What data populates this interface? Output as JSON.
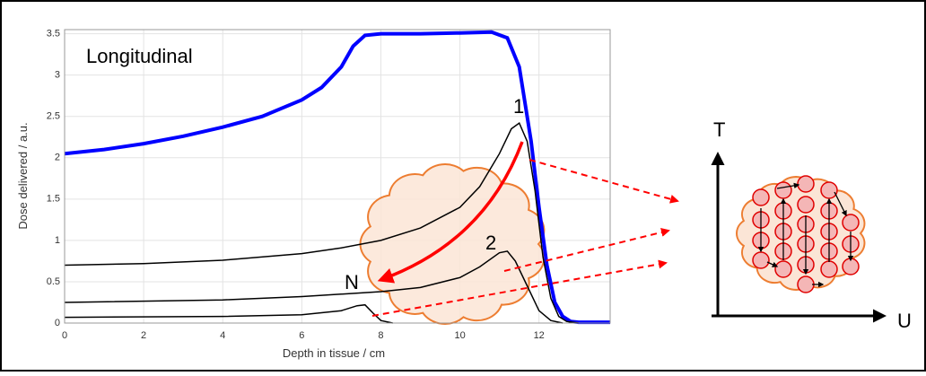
{
  "chart_data": {
    "type": "line",
    "title": "Longitudinal",
    "x_label": "Depth in tissue / cm",
    "y_label": "Dose delivered / a.u.",
    "xlim": [
      0,
      13.8
    ],
    "ylim": [
      0,
      3.55
    ],
    "xticks": [
      0,
      2,
      4,
      6,
      8,
      10,
      12
    ],
    "yticks": [
      0,
      0.5,
      1,
      1.5,
      2,
      2.5,
      3,
      3.5
    ],
    "grid": true,
    "series": [
      {
        "color": "#0000ff",
        "x": [
          0,
          1,
          2,
          3,
          4,
          5,
          6,
          6.5,
          7,
          7.3,
          7.6,
          8,
          9,
          10,
          10.8,
          11.2,
          11.5,
          11.8,
          12,
          12.2,
          12.4,
          12.6,
          12.8,
          13,
          13.8
        ],
        "values": [
          2.05,
          2.1,
          2.17,
          2.26,
          2.37,
          2.5,
          2.7,
          2.85,
          3.1,
          3.35,
          3.48,
          3.5,
          3.5,
          3.51,
          3.52,
          3.45,
          3.1,
          2.2,
          1.4,
          0.7,
          0.25,
          0.08,
          0.02,
          0.01,
          0.01
        ]
      },
      {
        "color": "#000000",
        "x": [
          0,
          2,
          4,
          6,
          7,
          8,
          9,
          10,
          10.5,
          11,
          11.3,
          11.5,
          11.7,
          11.9,
          12.1,
          12.3,
          12.5,
          12.7,
          13
        ],
        "values": [
          0.7,
          0.72,
          0.76,
          0.84,
          0.91,
          1.0,
          1.15,
          1.4,
          1.65,
          2.05,
          2.35,
          2.42,
          2.2,
          1.6,
          0.8,
          0.3,
          0.08,
          0.02,
          0
        ]
      },
      {
        "color": "#000000",
        "x": [
          0,
          4,
          6,
          8,
          9,
          10,
          10.5,
          11,
          11.2,
          11.4,
          11.7,
          12,
          12.3,
          12.6
        ],
        "values": [
          0.25,
          0.28,
          0.32,
          0.38,
          0.43,
          0.55,
          0.68,
          0.85,
          0.87,
          0.75,
          0.45,
          0.15,
          0.03,
          0
        ]
      },
      {
        "color": "#000000",
        "x": [
          0,
          4,
          6,
          7,
          7.4,
          7.6,
          7.8,
          8,
          8.3
        ],
        "values": [
          0.07,
          0.08,
          0.1,
          0.15,
          0.21,
          0.22,
          0.12,
          0.03,
          0
        ]
      }
    ],
    "annotations": [
      "1",
      "2",
      "N"
    ]
  },
  "diagram": {
    "t_axis": "T",
    "u_axis": "U"
  }
}
